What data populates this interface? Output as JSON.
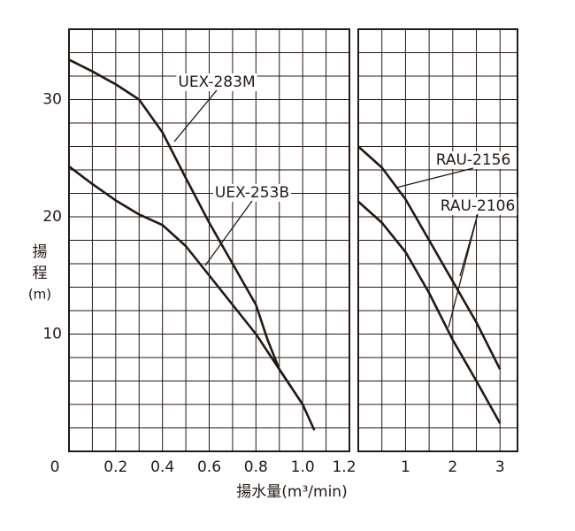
{
  "chart_data": [
    {
      "type": "line",
      "y_label_lines": [
        "揚",
        "程",
        "(m)"
      ],
      "x_label": "揚水量(m³/min)",
      "xlim": [
        0,
        1.2
      ],
      "xticks": [
        0,
        0.2,
        0.4,
        0.6,
        0.8,
        {
          "value": 1,
          "label": "1.0"
        },
        1.2
      ],
      "xgrid": [
        0.1,
        0.2,
        0.3,
        0.4,
        0.5,
        0.6,
        0.7,
        0.8,
        0.9,
        1.0,
        1.1
      ],
      "ylim": [
        0,
        36
      ],
      "yticks": [
        10,
        20,
        30
      ],
      "ygrid": [
        2,
        4,
        6,
        8,
        10,
        12,
        14,
        16,
        18,
        20,
        22,
        24,
        26,
        28,
        30,
        32,
        34
      ],
      "series": [
        {
          "name": "UEX-283M",
          "color": "#231815",
          "x": [
            0,
            0.1,
            0.2,
            0.3,
            0.4,
            0.5,
            0.6,
            0.7,
            0.8,
            0.85,
            0.9,
            0.95
          ],
          "values": [
            33.4,
            32.4,
            31.3,
            30.0,
            27.2,
            23.3,
            19.5,
            16.0,
            12.5,
            9.5,
            7.0,
            5.5
          ]
        },
        {
          "name": "UEX-253B",
          "color": "#231815",
          "x": [
            0,
            0.1,
            0.2,
            0.3,
            0.4,
            0.5,
            0.6,
            0.7,
            0.8,
            0.9,
            1.0,
            1.05
          ],
          "values": [
            24.3,
            22.8,
            21.4,
            20.2,
            19.3,
            17.5,
            15.0,
            12.5,
            10.0,
            7.0,
            4.0,
            1.8
          ]
        }
      ]
    },
    {
      "type": "line",
      "xlim": [
        0,
        3.37
      ],
      "xticks": [
        1,
        2,
        3
      ],
      "xgrid": [
        0.5,
        1,
        1.5,
        2,
        2.5,
        3
      ],
      "ylim": [
        0,
        36
      ],
      "ygrid": [
        2,
        4,
        6,
        8,
        10,
        12,
        14,
        16,
        18,
        20,
        22,
        24,
        26,
        28,
        30,
        32,
        34
      ],
      "series": [
        {
          "name": "RAU-2156",
          "color": "#231815",
          "x": [
            0,
            0.5,
            1,
            1.5,
            2,
            2.5,
            3
          ],
          "values": [
            26.0,
            24.2,
            21.5,
            18.0,
            14.5,
            11.0,
            7.0
          ]
        },
        {
          "name": "RAU-2106",
          "color": "#231815",
          "x": [
            0,
            0.5,
            1,
            1.5,
            2,
            2.5,
            3
          ],
          "values": [
            21.3,
            19.5,
            17.0,
            13.5,
            9.5,
            6.0,
            2.4
          ]
        }
      ]
    }
  ]
}
